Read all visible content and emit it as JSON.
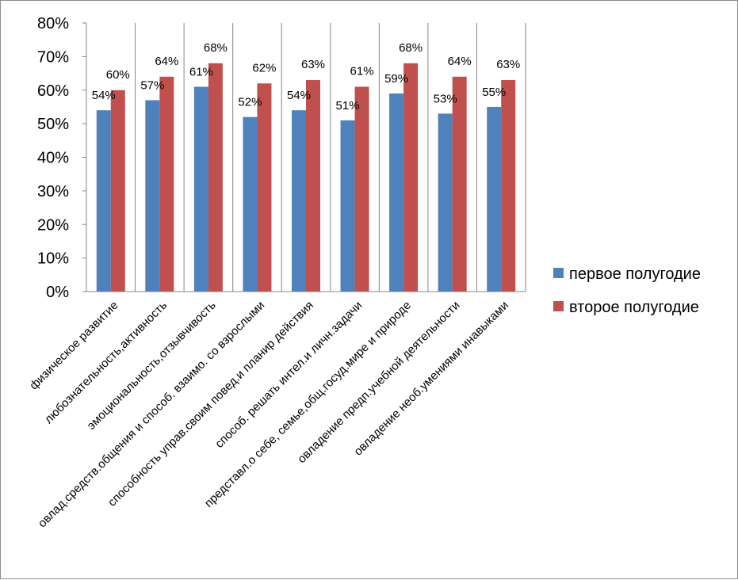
{
  "chart_data": {
    "type": "bar",
    "categories": [
      "физическое развитие",
      "любознательность,активность",
      "эмоциональность,отзывчивость",
      "овлад.средств.общения и способ. взаимо. со взрослыми",
      "способность управ.своим повед.и планир действия",
      "способ. решать интел.и личн.задачи",
      "представл.о себе, семье,общ.госуд.мире и природе",
      "овладение предп.учебной деятельности",
      "овладение необ.умениями инавыками"
    ],
    "series": [
      {
        "name": "первое полугодие",
        "color": "#4F81BD",
        "values": [
          54,
          57,
          61,
          52,
          54,
          51,
          59,
          53,
          55
        ],
        "labels": [
          "54%",
          "57%",
          "61%",
          "52%",
          "54%",
          "51%",
          "59%",
          "53%",
          "55%"
        ]
      },
      {
        "name": "второе полугодие",
        "color": "#C0504D",
        "values": [
          60,
          64,
          68,
          62,
          63,
          61,
          68,
          64,
          63
        ],
        "labels": [
          "60%",
          "64%",
          "68%",
          "62%",
          "63%",
          "61%",
          "68%",
          "64%",
          "63%"
        ]
      }
    ],
    "yticks": [
      "0%",
      "10%",
      "20%",
      "30%",
      "40%",
      "50%",
      "60%",
      "70%",
      "80%"
    ],
    "ylim": [
      0,
      80
    ],
    "grid": true,
    "legend": "right"
  }
}
